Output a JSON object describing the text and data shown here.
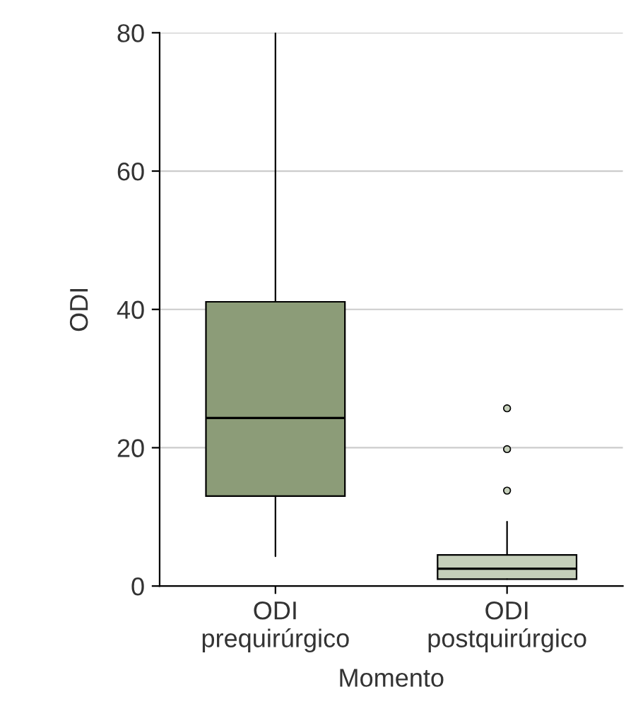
{
  "chart_data": {
    "type": "box",
    "xlabel": "Momento",
    "ylabel": "ODI",
    "categories": [
      "ODI\nprequirúrgico",
      "ODI\npostquirúrgico"
    ],
    "boxes": [
      {
        "low": 4.3,
        "q1": 13,
        "median": 24.3,
        "q3": 41.1,
        "high": 80
      },
      {
        "low": 1,
        "q1": 1,
        "median": 2.5,
        "q3": 4.5,
        "high": 9.3,
        "outliers": [
          13.8,
          19.8,
          25.7
        ]
      }
    ],
    "colors": [
      "#8c9c78",
      "#c5cfba"
    ],
    "ylim": [
      0,
      80
    ],
    "yticks": [
      0,
      20,
      40,
      60,
      80
    ],
    "grid": "y",
    "legend": false
  }
}
